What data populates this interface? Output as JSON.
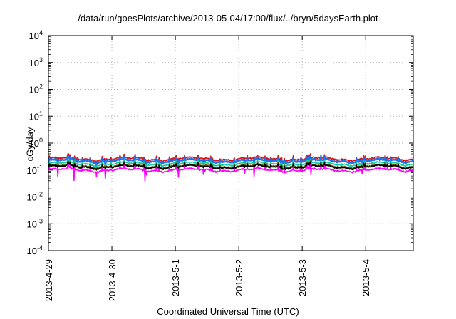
{
  "chart_data": {
    "type": "line",
    "title": "/data/run/goesPlots/archive/2013-05-04/17:00/flux/../bryn/5daysEarth.plot",
    "xlabel": "Coordinated Universal Time (UTC)",
    "ylabel": "cGy/day",
    "yscale": "log",
    "ylim": [
      0.0001,
      10000
    ],
    "xlim": [
      "2013-04-29",
      "2013-05-04 18:00"
    ],
    "x_ticks": [
      "2013-4-29",
      "2013-4-30",
      "2013-5-1",
      "2013-5-2",
      "2013-5-3",
      "2013-5-4"
    ],
    "y_ticks": [
      {
        "base": "10",
        "exp": "-4"
      },
      {
        "base": "10",
        "exp": "-3"
      },
      {
        "base": "10",
        "exp": "-2"
      },
      {
        "base": "10",
        "exp": "-1"
      },
      {
        "base": "10",
        "exp": "0"
      },
      {
        "base": "10",
        "exp": "1"
      },
      {
        "base": "10",
        "exp": "2"
      },
      {
        "base": "10",
        "exp": "3"
      },
      {
        "base": "10",
        "exp": "4"
      }
    ],
    "grid": true,
    "legend": "none",
    "series": [
      {
        "color": "#e01010",
        "level": 0.26,
        "dip_min": 0.2
      },
      {
        "color": "#1e6ff0",
        "level": 0.22,
        "dip_min": 0.11
      },
      {
        "color": "#10c8a0",
        "level": 0.17,
        "dip_min": 0.12
      },
      {
        "color": "#606000",
        "level": 0.14,
        "dip_min": 0.1
      },
      {
        "color": "#000000",
        "level": 0.13,
        "dip_min": 0.1
      },
      {
        "color": "#ff00ff",
        "level": 0.1,
        "dip_min": 0.035
      }
    ]
  }
}
